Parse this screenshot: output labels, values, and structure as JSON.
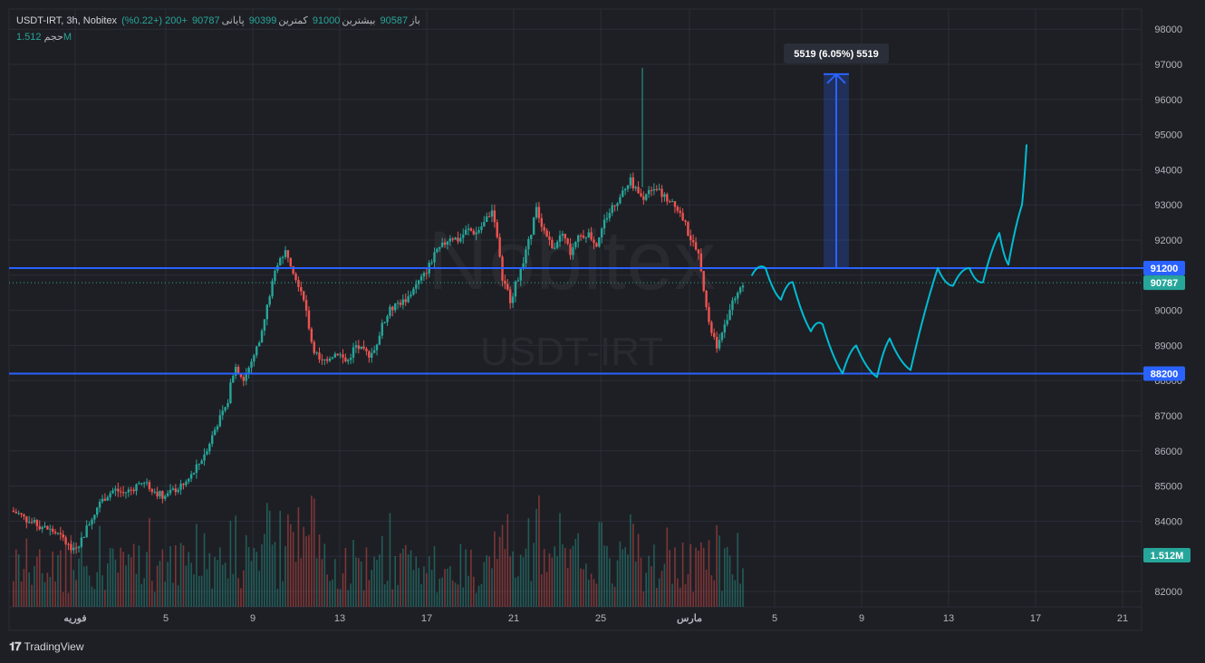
{
  "header": {
    "symbol": "USDT-IRT, 3h, Nobitex",
    "open_label": "باز",
    "open_value": "90587",
    "high_label": "بیشترین",
    "high_value": "91000",
    "low_label": "کمترین",
    "low_value": "90399",
    "close_label": "پایانی",
    "close_value": "90787",
    "change": "+200 (+0.22%)",
    "volume_label": "حجم",
    "volume_value": "1.512M"
  },
  "watermark": {
    "brand": "Nobitex",
    "pair": "USDT-IRT"
  },
  "branding": {
    "name": "TradingView"
  },
  "chart_data": {
    "type": "line",
    "yaxis_ticks": [
      "98000",
      "97000",
      "96000",
      "95000",
      "94000",
      "93000",
      "92000",
      "91000",
      "90000",
      "89000",
      "88000",
      "87000",
      "86000",
      "85000",
      "84000",
      "83000",
      "82000"
    ],
    "ylim": [
      81700,
      98600
    ],
    "xaxis_ticks": [
      "فوریه",
      "5",
      "9",
      "13",
      "17",
      "21",
      "25",
      "مارس",
      "5",
      "9",
      "13",
      "17",
      "21"
    ],
    "price_levels": [
      {
        "label": "91200",
        "value": 91200,
        "color": "#2962ff"
      },
      {
        "label": "88200",
        "value": 88200,
        "color": "#2962ff"
      }
    ],
    "last_price": {
      "label": "90787",
      "value": 90787,
      "color": "#26a69a"
    },
    "volume_label": {
      "label": "1.512M",
      "color": "#26a69a"
    },
    "measure": {
      "label": "5519 (6.05%) 5519",
      "from": 91200,
      "to": 96719
    },
    "price_series": [
      84300,
      84200,
      84000,
      83900,
      83800,
      83700,
      83500,
      83200,
      83400,
      83900,
      84400,
      84700,
      84900,
      84800,
      84900,
      85100,
      85000,
      84800,
      84700,
      84900,
      85000,
      85300,
      85700,
      86200,
      86800,
      87200,
      88500,
      88000,
      88600,
      89200,
      90400,
      91400,
      91700,
      91000,
      90400,
      89000,
      88500,
      88700,
      88800,
      88500,
      89000,
      88800,
      88700,
      89500,
      90000,
      90200,
      90300,
      90700,
      91000,
      91500,
      91800,
      92100,
      92000,
      92300,
      92200,
      92500,
      92900,
      91000,
      90300,
      91000,
      91800,
      92900,
      92200,
      91800,
      92300,
      91600,
      92100,
      92200,
      91900,
      92600,
      93000,
      93300,
      93700,
      93200,
      93300,
      93500,
      93200,
      93100,
      92600,
      92000,
      91500,
      89600,
      89000,
      89700,
      90400,
      90787
    ],
    "projection_path": [
      91000,
      91200,
      90300,
      90800,
      89400,
      89600,
      88200,
      89000,
      88100,
      89200,
      88300,
      91200,
      90700,
      91200,
      90800,
      92200,
      91300,
      93000,
      94700
    ]
  }
}
